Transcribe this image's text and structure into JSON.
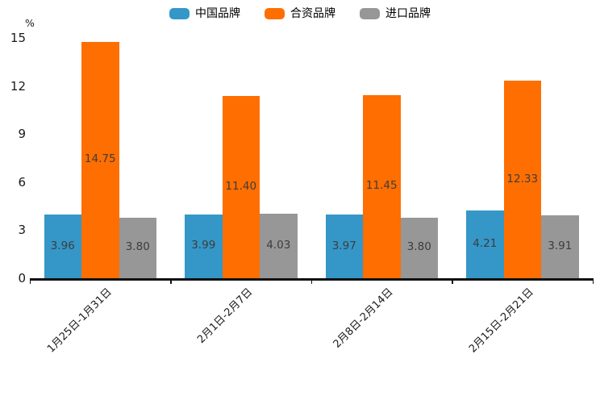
{
  "chart_data": {
    "type": "bar",
    "title": "",
    "unit_label": "%",
    "categories": [
      "1月25日-1月31日",
      "2月1日-2月7日",
      "2月8日-2月14日",
      "2月15日-2月21日"
    ],
    "series": [
      {
        "name": "中国品牌",
        "color": "#3497C8",
        "values": [
          3.96,
          3.99,
          3.97,
          4.21
        ]
      },
      {
        "name": "合资品牌",
        "color": "#FF6E00",
        "values": [
          14.75,
          11.4,
          11.45,
          12.33
        ]
      },
      {
        "name": "进口品牌",
        "color": "#979797",
        "values": [
          3.8,
          4.03,
          3.8,
          3.91
        ]
      }
    ],
    "y_axis": {
      "min": 0,
      "max": 15,
      "ticks": [
        0,
        3,
        6,
        9,
        12,
        15
      ]
    },
    "legend_position": "top",
    "grid": false,
    "value_label_decimals": 2,
    "colors": {
      "axis_line": "#111111",
      "value_label_text": "#3d3d3d",
      "axis_label_text": "#1a1a1a"
    }
  }
}
